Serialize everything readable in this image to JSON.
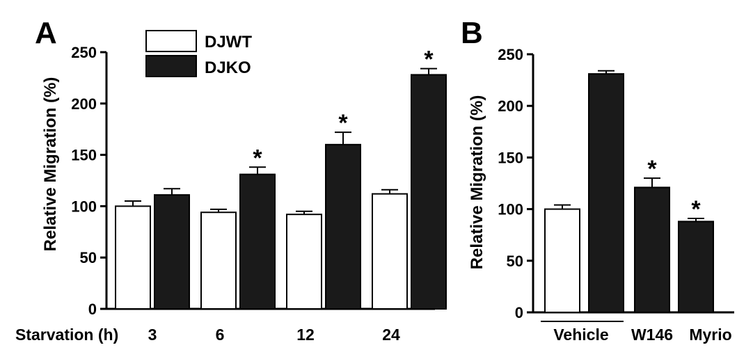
{
  "chart_data": [
    {
      "panel": "A",
      "type": "bar",
      "ylabel": "Relative Migration (%)",
      "xlabel": "Starvation (h)",
      "ylim": [
        0,
        250
      ],
      "yticks": [
        0,
        50,
        100,
        150,
        200,
        250
      ],
      "categories": [
        "3",
        "6",
        "12",
        "24"
      ],
      "series": [
        {
          "name": "DJWT",
          "values": [
            100,
            94,
            92,
            112
          ],
          "errors": [
            5,
            3,
            3,
            4
          ],
          "color": "#ffffff"
        },
        {
          "name": "DJKO",
          "values": [
            111,
            131,
            160,
            228
          ],
          "errors": [
            6,
            7,
            12,
            6
          ],
          "color": "#1a1a1a"
        }
      ],
      "significance": {
        "marker": "*",
        "series": "DJKO",
        "categories": [
          "6",
          "12",
          "24"
        ]
      },
      "legend": "top-left"
    },
    {
      "panel": "B",
      "type": "bar",
      "ylabel": "Relative Migration (%)",
      "ylim": [
        0,
        250
      ],
      "yticks": [
        0,
        50,
        100,
        150,
        200,
        250
      ],
      "bars": [
        {
          "value": 100,
          "error": 4,
          "color": "#ffffff",
          "star": false
        },
        {
          "value": 231,
          "error": 3,
          "color": "#1a1a1a",
          "star": false
        },
        {
          "value": 121,
          "error": 9,
          "color": "#1a1a1a",
          "star": true
        },
        {
          "value": 88,
          "error": 3,
          "color": "#1a1a1a",
          "star": true
        }
      ],
      "groups": [
        "Vehicle",
        "W146",
        "Myrio"
      ],
      "significance_marker": "*"
    }
  ]
}
